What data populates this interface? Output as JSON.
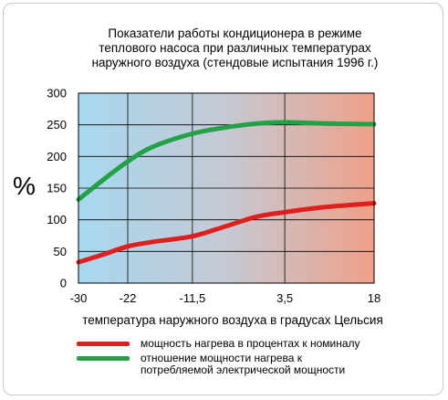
{
  "chart_data": {
    "type": "line",
    "title_lines": [
      "Показатели работы кондиционера в режиме",
      "теплового насоса при различных температурах",
      "наружного воздуха (стендовые испытания 1996 г.)"
    ],
    "ylabel": "%",
    "xlabel": "температура наружного воздуха в градусах Цельсия",
    "x_ticks": [
      -30,
      -22,
      -11.5,
      3.5,
      18
    ],
    "x_tick_labels": [
      "-30",
      "-22",
      "-11,5",
      "3,5",
      "18"
    ],
    "y_ticks": [
      0,
      50,
      100,
      150,
      200,
      250,
      300
    ],
    "ylim": [
      0,
      300
    ],
    "grid": true,
    "background_gradient": [
      "#a7d8ef",
      "#c5c9d4",
      "#eea089"
    ],
    "series": [
      {
        "name": "мощность нагрева в процентах к номиналу",
        "color": "#e01e1e",
        "points": [
          [
            -30,
            33
          ],
          [
            -26,
            45
          ],
          [
            -22,
            58
          ],
          [
            -18,
            65
          ],
          [
            -11.5,
            74
          ],
          [
            -6,
            90
          ],
          [
            -1,
            105
          ],
          [
            3.5,
            112
          ],
          [
            10,
            120
          ],
          [
            18,
            126
          ]
        ]
      },
      {
        "name": "отношение мощности нагрева к потребляемой электрической мощности",
        "color": "#22a146",
        "points": [
          [
            -30,
            132
          ],
          [
            -26,
            163
          ],
          [
            -22,
            192
          ],
          [
            -18,
            215
          ],
          [
            -11.5,
            236
          ],
          [
            -6,
            246
          ],
          [
            -1,
            252
          ],
          [
            3.5,
            254
          ],
          [
            10,
            252
          ],
          [
            18,
            251
          ]
        ]
      }
    ]
  },
  "legend": [
    {
      "line1": "мощность нагрева в процентах к номиналу",
      "line2": ""
    },
    {
      "line1": "отношение мощности нагрева к",
      "line2": "потребляемой электрической мощности"
    }
  ]
}
